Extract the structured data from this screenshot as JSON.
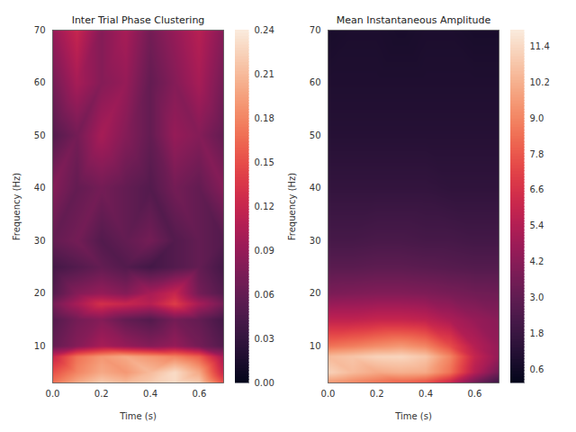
{
  "chart_data": [
    {
      "type": "heatmap",
      "title": "Inter Trial Phase Clustering",
      "x_label": "Time (s)",
      "y_label": "Frequency (Hz)",
      "x": [
        0,
        0.1,
        0.2,
        0.3,
        0.4,
        0.5,
        0.6,
        0.7
      ],
      "y": [
        3,
        5,
        8,
        10,
        15,
        18,
        20,
        25,
        30,
        40,
        50,
        60,
        70
      ],
      "values": [
        [
          0.17,
          0.2,
          0.22,
          0.21,
          0.22,
          0.23,
          0.22,
          0.15
        ],
        [
          0.15,
          0.18,
          0.2,
          0.19,
          0.21,
          0.23,
          0.2,
          0.12
        ],
        [
          0.12,
          0.17,
          0.19,
          0.2,
          0.19,
          0.18,
          0.16,
          0.1
        ],
        [
          0.06,
          0.08,
          0.1,
          0.09,
          0.08,
          0.09,
          0.07,
          0.05
        ],
        [
          0.05,
          0.07,
          0.08,
          0.06,
          0.05,
          0.07,
          0.06,
          0.04
        ],
        [
          0.07,
          0.1,
          0.13,
          0.12,
          0.11,
          0.14,
          0.1,
          0.07
        ],
        [
          0.05,
          0.08,
          0.09,
          0.08,
          0.1,
          0.12,
          0.07,
          0.05
        ],
        [
          0.04,
          0.05,
          0.06,
          0.05,
          0.04,
          0.05,
          0.06,
          0.04
        ],
        [
          0.06,
          0.07,
          0.05,
          0.06,
          0.07,
          0.05,
          0.06,
          0.05
        ],
        [
          0.08,
          0.06,
          0.07,
          0.06,
          0.05,
          0.07,
          0.06,
          0.08
        ],
        [
          0.05,
          0.07,
          0.1,
          0.08,
          0.06,
          0.09,
          0.08,
          0.06
        ],
        [
          0.07,
          0.1,
          0.08,
          0.09,
          0.06,
          0.08,
          0.1,
          0.07
        ],
        [
          0.09,
          0.12,
          0.08,
          0.1,
          0.07,
          0.09,
          0.11,
          0.08
        ]
      ],
      "xlim": [
        0,
        0.7
      ],
      "ylim": [
        3,
        70
      ],
      "xticks": [
        {
          "value": 0,
          "label": "0.0"
        },
        0.2,
        0.4,
        0.6
      ],
      "yticks": [
        10,
        20,
        30,
        40,
        50,
        60,
        70
      ],
      "colorbar": {
        "range": [
          0,
          0.24
        ],
        "ticks": [
          {
            "value": 0,
            "label": "0.00"
          },
          {
            "value": 0.03,
            "label": "0.03"
          },
          {
            "value": 0.06,
            "label": "0.06"
          },
          {
            "value": 0.09,
            "label": "0.09"
          },
          {
            "value": 0.12,
            "label": "0.12"
          },
          {
            "value": 0.15,
            "label": "0.15"
          },
          {
            "value": 0.18,
            "label": "0.18"
          },
          {
            "value": 0.21,
            "label": "0.21"
          },
          {
            "value": 0.24,
            "label": "0.24"
          }
        ]
      }
    },
    {
      "type": "heatmap",
      "title": "Mean Instantaneous Amplitude",
      "x_label": "Time (s)",
      "y_label": "Frequency (Hz)",
      "x": [
        0,
        0.1,
        0.2,
        0.3,
        0.4,
        0.5,
        0.6,
        0.7
      ],
      "y": [
        3,
        5,
        8,
        10,
        15,
        20,
        25,
        30,
        40,
        50,
        60,
        70
      ],
      "values": [
        [
          9.5,
          9.0,
          8.5,
          8.0,
          7.5,
          6.0,
          3.5,
          1.8
        ],
        [
          11.2,
          10.5,
          10.0,
          10.2,
          10.0,
          8.5,
          5.5,
          3.5
        ],
        [
          10.5,
          10.8,
          11.2,
          11.3,
          10.8,
          9.0,
          6.0,
          4.5
        ],
        [
          8.5,
          8.8,
          9.2,
          9.5,
          9.0,
          7.5,
          5.5,
          4.5
        ],
        [
          5.8,
          5.8,
          6.0,
          6.0,
          5.8,
          5.2,
          4.6,
          4.2
        ],
        [
          3.8,
          3.9,
          4.0,
          4.0,
          3.9,
          3.7,
          3.5,
          3.4
        ],
        [
          2.8,
          2.8,
          2.9,
          2.9,
          2.8,
          2.7,
          2.6,
          2.6
        ],
        [
          2.2,
          2.2,
          2.3,
          2.3,
          2.2,
          2.2,
          2.1,
          2.1
        ],
        [
          1.6,
          1.6,
          1.6,
          1.6,
          1.6,
          1.5,
          1.5,
          1.5
        ],
        [
          1.2,
          1.2,
          1.2,
          1.2,
          1.2,
          1.2,
          1.2,
          1.2
        ],
        [
          1.0,
          1.0,
          1.0,
          1.0,
          1.0,
          1.0,
          1.0,
          1.0
        ],
        [
          0.8,
          0.9,
          0.9,
          0.8,
          0.9,
          0.9,
          0.8,
          0.8
        ]
      ],
      "xlim": [
        0,
        0.7
      ],
      "ylim": [
        3,
        70
      ],
      "xticks": [
        {
          "value": 0,
          "label": "0.0"
        },
        0.2,
        0.4,
        0.6
      ],
      "yticks": [
        10,
        20,
        30,
        40,
        50,
        60,
        70
      ],
      "colorbar": {
        "range": [
          0.15,
          11.95
        ],
        "ticks": [
          0.6,
          1.8,
          {
            "value": 3,
            "label": "3.0"
          },
          4.2,
          5.4,
          6.6,
          7.8,
          {
            "value": 9,
            "label": "9.0"
          },
          10.2,
          11.4
        ]
      }
    }
  ]
}
